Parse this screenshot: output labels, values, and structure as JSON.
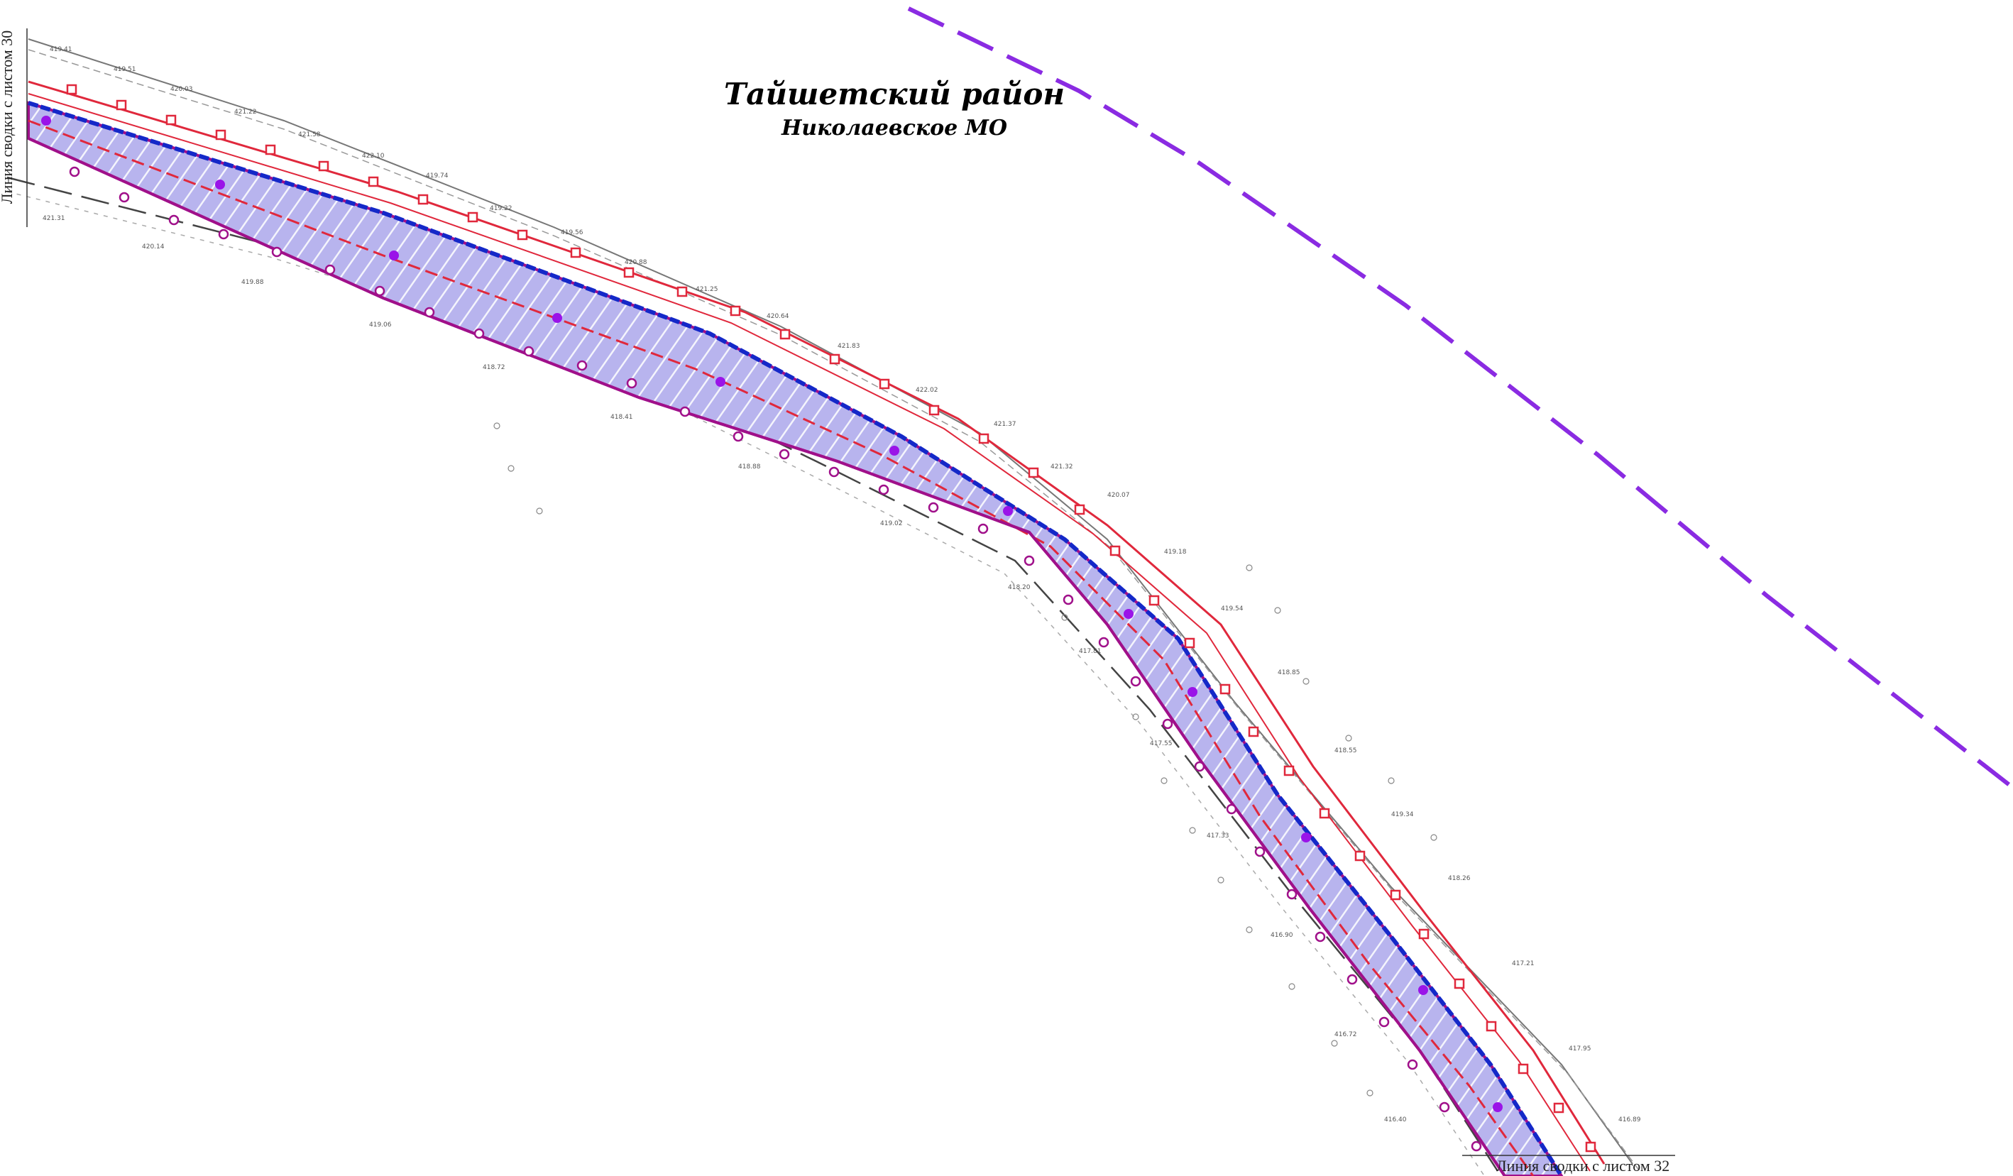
{
  "map": {
    "title": "Тайшетский район",
    "subtitle": "Николаевское МО",
    "match_line_left": "Линия сводки с листом 30",
    "match_line_bottom": "Линия сводки с листом 32"
  },
  "colors": {
    "zone_fill": "#b8b4ee",
    "zone_border": "#a0108a",
    "zone_hatch": "#ffffff",
    "road_edge_blue": "#1428c8",
    "axis_red": "#e0283c",
    "boundary_purple": "#8a2be2",
    "survey_grey": "#444444"
  }
}
